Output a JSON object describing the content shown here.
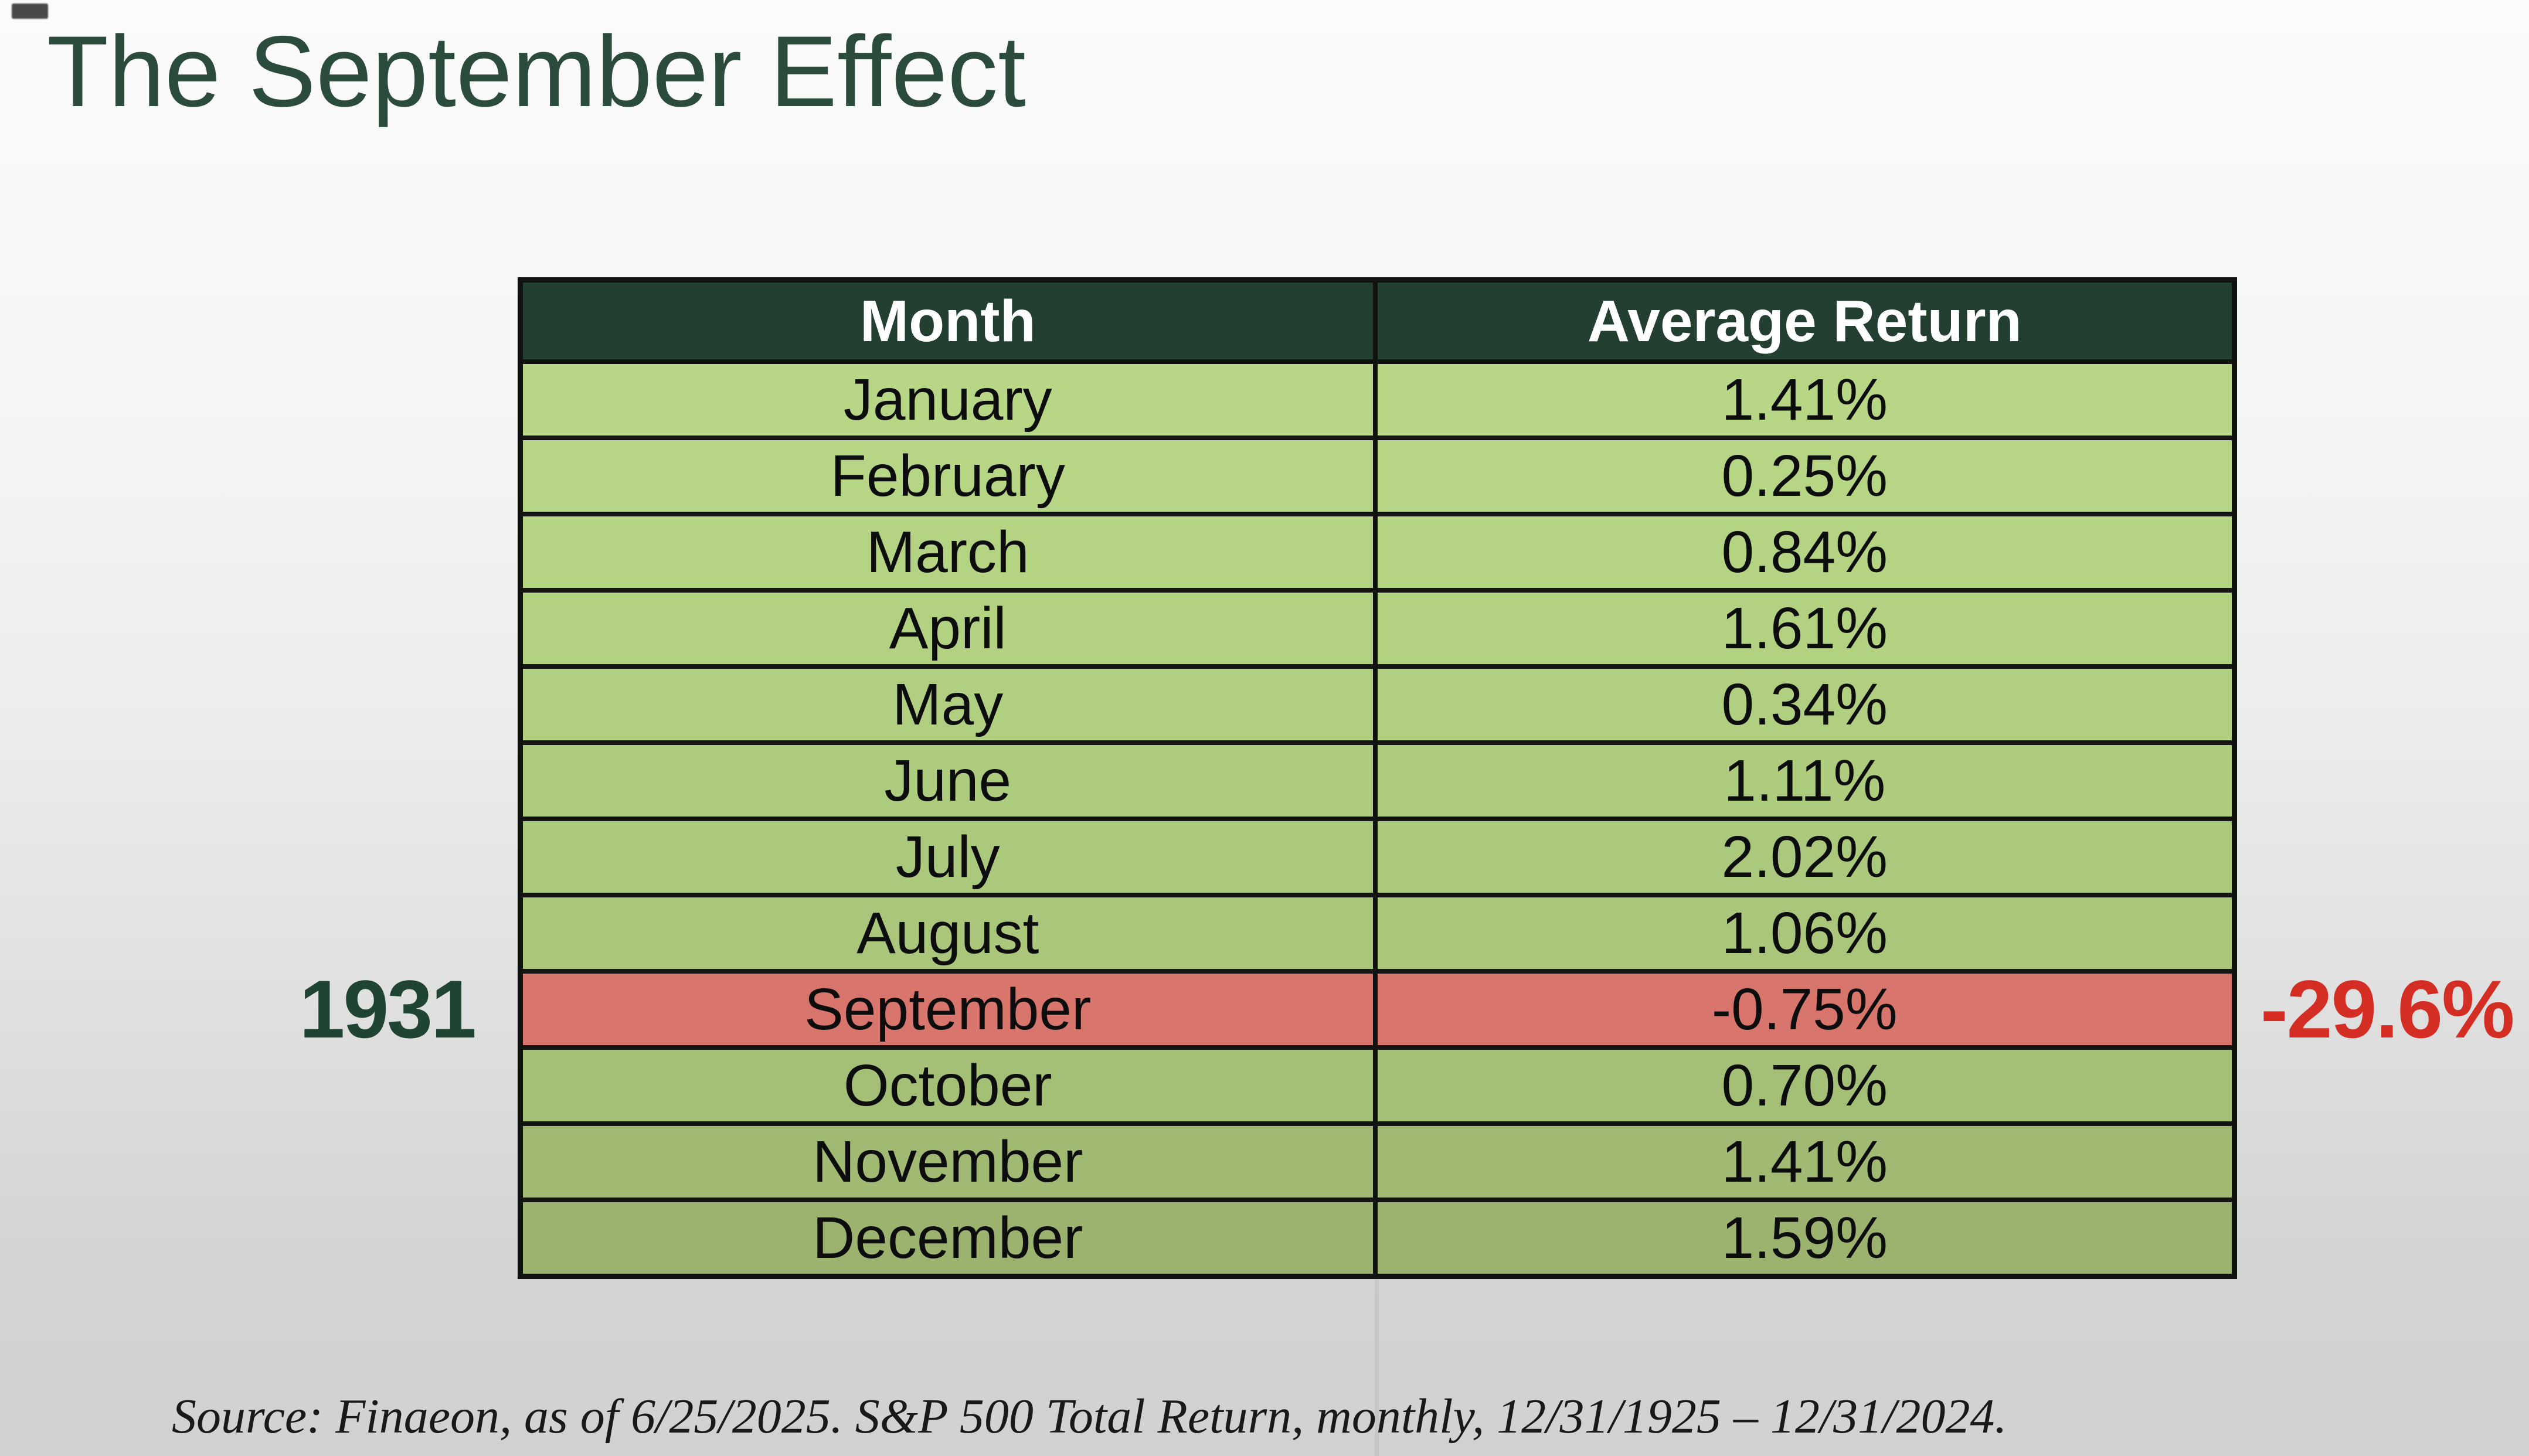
{
  "title": "The September Effect",
  "table": {
    "headers": [
      "Month",
      "Average Return"
    ],
    "rows": [
      {
        "month": "January",
        "value": "1.41%",
        "bg": "#b7d787",
        "highlight": false
      },
      {
        "month": "February",
        "value": "0.25%",
        "bg": "#b6d685",
        "highlight": false
      },
      {
        "month": "March",
        "value": "0.84%",
        "bg": "#b4d483",
        "highlight": false
      },
      {
        "month": "April",
        "value": "1.61%",
        "bg": "#b2d181",
        "highlight": false
      },
      {
        "month": "May",
        "value": "0.34%",
        "bg": "#b0cf80",
        "highlight": false
      },
      {
        "month": "June",
        "value": "1.11%",
        "bg": "#aecc7e",
        "highlight": false
      },
      {
        "month": "July",
        "value": "2.02%",
        "bg": "#abc97c",
        "highlight": false
      },
      {
        "month": "August",
        "value": "1.06%",
        "bg": "#a9c67a",
        "highlight": false
      },
      {
        "month": "September",
        "value": "-0.75%",
        "bg": "#d8756d",
        "highlight": true
      },
      {
        "month": "October",
        "value": "0.70%",
        "bg": "#a4bf76",
        "highlight": false
      },
      {
        "month": "November",
        "value": "1.41%",
        "bg": "#a0b973",
        "highlight": false
      },
      {
        "month": "December",
        "value": "1.59%",
        "bg": "#9cb370",
        "highlight": false
      }
    ]
  },
  "annotations": {
    "year_label": "1931",
    "extreme_value": "-29.6%"
  },
  "source_note": "Source: Finaeon, as of 6/25/2025. S&P 500 Total Return, monthly, 12/31/1925 – 12/31/2024.",
  "colors": {
    "title_green": "#2c4c3b",
    "header_bg": "#223f30",
    "header_text": "#ffffff",
    "highlight_row_bg": "#d8756d",
    "annotation_red": "#d32d24",
    "annotation_green": "#1f4431",
    "table_border": "#101210"
  },
  "chart_data": {
    "type": "table",
    "title": "The September Effect",
    "columns": [
      "Month",
      "Average Return"
    ],
    "categories": [
      "January",
      "February",
      "March",
      "April",
      "May",
      "June",
      "July",
      "August",
      "September",
      "October",
      "November",
      "December"
    ],
    "values": [
      1.41,
      0.25,
      0.84,
      1.61,
      0.34,
      1.11,
      2.02,
      1.06,
      -0.75,
      0.7,
      1.41,
      1.59
    ],
    "value_unit": "percent",
    "highlight": {
      "category": "September",
      "value": -0.75,
      "annotation_year": "1931",
      "annotation_year_return": -29.6
    },
    "source": "Finaeon, as of 6/25/2025. S&P 500 Total Return, monthly, 12/31/1925 – 12/31/2024."
  }
}
